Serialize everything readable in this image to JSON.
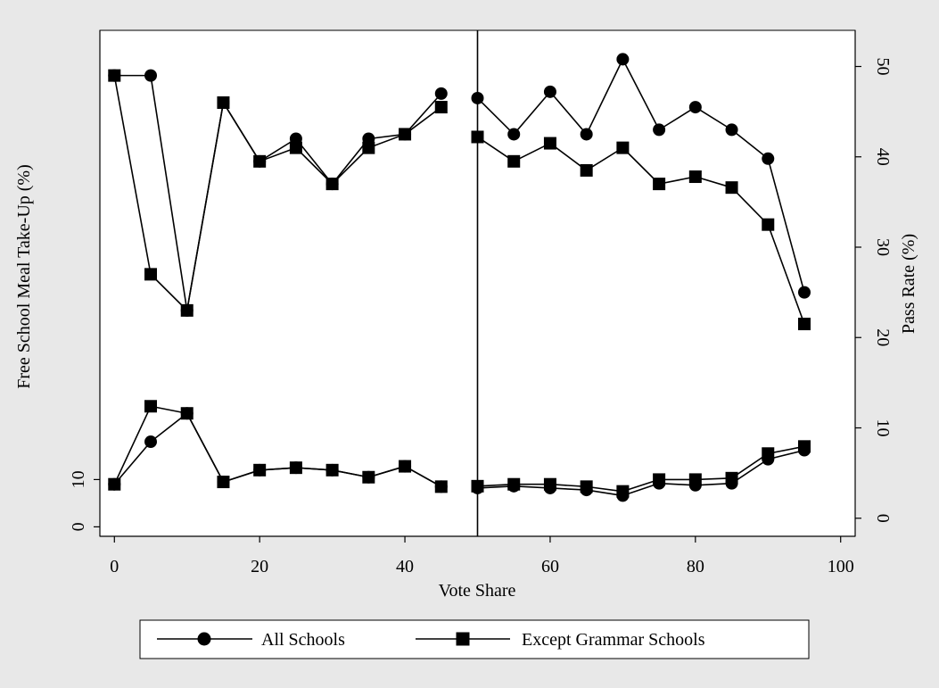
{
  "chart_data": [
    {
      "type": "line",
      "panel": "pass-rate",
      "ylabel": "Pass Rate (%)",
      "ylim": [
        -2,
        54
      ],
      "yticks": [
        0,
        10,
        20,
        30,
        40,
        50
      ],
      "series": [
        {
          "name": "All Schools",
          "marker": "circle",
          "segments": [
            {
              "x": [
                0,
                5,
                10,
                15,
                20,
                25,
                30,
                35,
                40,
                45
              ],
              "y": [
                49,
                49,
                23,
                46,
                39.5,
                42,
                37,
                42,
                42.5,
                47
              ]
            },
            {
              "x": [
                50,
                55,
                60,
                65,
                70,
                75,
                80,
                85,
                90,
                95
              ],
              "y": [
                46.5,
                42.5,
                47.2,
                42.5,
                50.8,
                43,
                45.5,
                43,
                39.8,
                25
              ]
            }
          ]
        },
        {
          "name": "Except Grammar Schools",
          "marker": "square",
          "segments": [
            {
              "x": [
                0,
                5,
                10,
                15,
                20,
                25,
                30,
                35,
                40,
                45
              ],
              "y": [
                49,
                27,
                23,
                46,
                39.5,
                41,
                37,
                41,
                42.5,
                45.5
              ]
            },
            {
              "x": [
                50,
                55,
                60,
                65,
                70,
                75,
                80,
                85,
                90,
                95
              ],
              "y": [
                42.2,
                39.5,
                41.5,
                38.5,
                41,
                37,
                37.8,
                36.6,
                32.5,
                21.5
              ]
            }
          ]
        }
      ]
    },
    {
      "type": "line",
      "panel": "free-school-meal",
      "ylabel": "Free School Meal Take-Up (%)",
      "ylim": [
        -2,
        105
      ],
      "yticks": [
        0,
        10
      ],
      "series": [
        {
          "name": "All Schools",
          "marker": "circle",
          "segments": [
            {
              "x": [
                0,
                5,
                10,
                15,
                20,
                25,
                30,
                35,
                40,
                45
              ],
              "y": [
                9,
                18,
                24,
                9.5,
                12,
                12.5,
                12,
                10.5,
                12.8,
                8.5
              ]
            },
            {
              "x": [
                50,
                55,
                60,
                65,
                70,
                75,
                80,
                85,
                90,
                95
              ],
              "y": [
                8.2,
                8.6,
                8.2,
                7.8,
                6.6,
                9.2,
                8.8,
                9.2,
                14.3,
                16.2
              ]
            }
          ]
        },
        {
          "name": "Except Grammar Schools",
          "marker": "square",
          "segments": [
            {
              "x": [
                0,
                5,
                10,
                15,
                20,
                25,
                30,
                35,
                40,
                45
              ],
              "y": [
                9,
                25.5,
                24,
                9.5,
                12,
                12.5,
                12,
                10.5,
                12.8,
                8.5
              ]
            },
            {
              "x": [
                50,
                55,
                60,
                65,
                70,
                75,
                80,
                85,
                90,
                95
              ],
              "y": [
                8.6,
                9,
                9,
                8.5,
                7.5,
                10,
                10,
                10.3,
                15.5,
                17
              ]
            }
          ]
        }
      ]
    }
  ],
  "x_axis": {
    "label": "Vote Share",
    "xlim": [
      -2,
      102
    ],
    "ticks": [
      0,
      20,
      40,
      60,
      80,
      100
    ]
  },
  "cutoff_line": {
    "x": 50
  },
  "legend": {
    "placement": "bottom",
    "entries": [
      {
        "label": "All Schools",
        "marker": "circle"
      },
      {
        "label": "Except Grammar Schools",
        "marker": "square"
      }
    ]
  },
  "colors": {
    "background": "#e8e8e8",
    "plot": "#ffffff",
    "ink": "#000000"
  }
}
